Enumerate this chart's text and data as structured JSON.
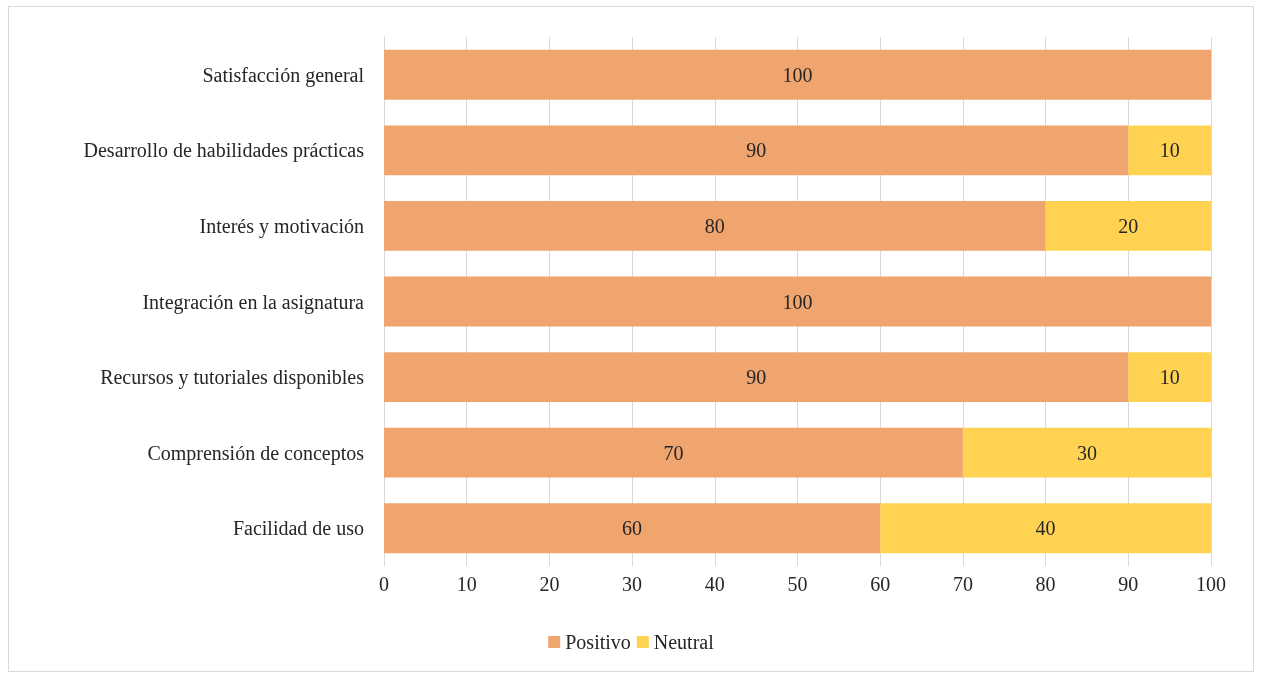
{
  "chart_data": {
    "type": "bar",
    "orientation": "horizontal",
    "stacked": true,
    "categories": [
      "Satisfacción general",
      "Desarrollo de habilidades prácticas",
      "Interés y motivación",
      "Integración en la asignatura",
      "Recursos y tutoriales disponibles",
      "Comprensión de conceptos",
      "Facilidad de uso"
    ],
    "series": [
      {
        "name": "Positivo",
        "color": "#f0a46e",
        "values": [
          100,
          90,
          80,
          100,
          90,
          70,
          60
        ]
      },
      {
        "name": "Neutral",
        "color": "#ffd351",
        "values": [
          null,
          10,
          20,
          null,
          10,
          30,
          40
        ]
      }
    ],
    "xlim": [
      0,
      100
    ],
    "xticks": [
      0,
      10,
      20,
      30,
      40,
      50,
      60,
      70,
      80,
      90,
      100
    ],
    "grid": "x",
    "legend": "bottom",
    "data_labels": true
  }
}
